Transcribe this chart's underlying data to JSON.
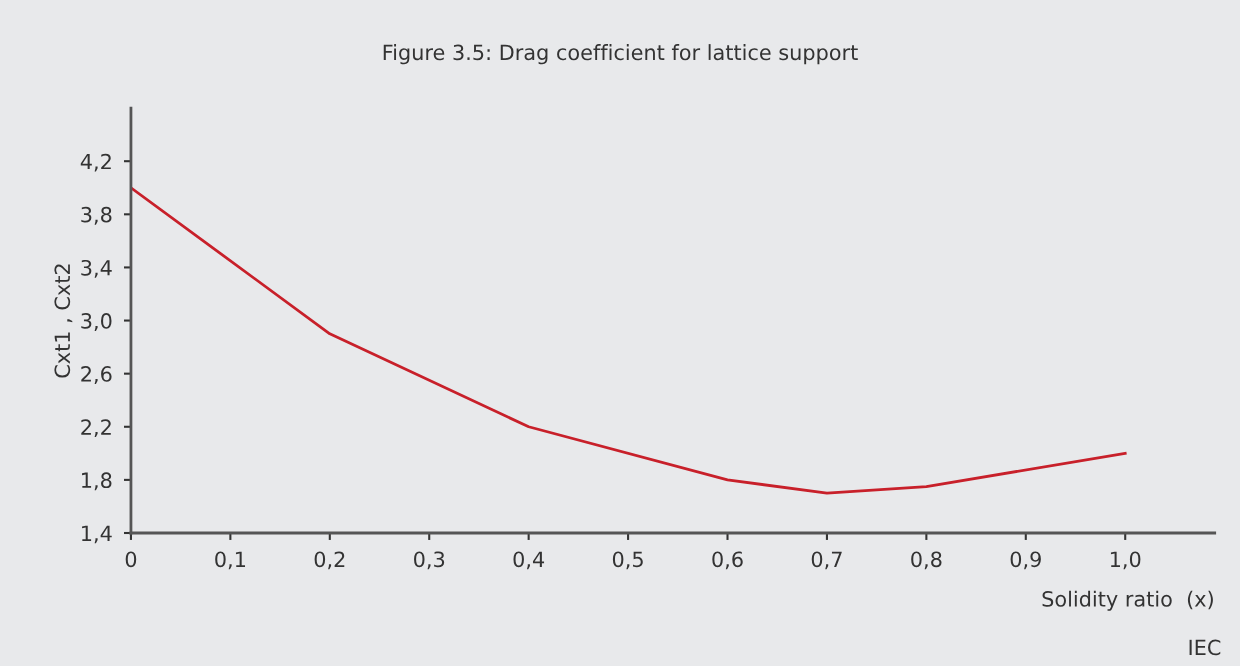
{
  "chart_data": {
    "type": "line",
    "title": "Figure 3.5: Drag coefficient for lattice support",
    "xlabel": "Solidity ratio  (x)",
    "ylabel": "Cxt1 , Cxt2",
    "x": [
      0,
      0.2,
      0.4,
      0.6,
      0.7,
      0.8,
      1.0
    ],
    "series": [
      {
        "color": "#c8202a",
        "values": [
          4.0,
          2.9,
          2.2,
          1.8,
          1.7,
          1.75,
          2.0
        ]
      }
    ],
    "xlim": [
      0,
      1.09
    ],
    "ylim": [
      1.4,
      4.6
    ],
    "xticks": [
      0,
      {
        "value": 0.1,
        "label": "0,1"
      },
      {
        "value": 0.2,
        "label": "0,2"
      },
      {
        "value": 0.3,
        "label": "0,3"
      },
      {
        "value": 0.4,
        "label": "0,4"
      },
      {
        "value": 0.5,
        "label": "0,5"
      },
      {
        "value": 0.6,
        "label": "0,6"
      },
      {
        "value": 0.7,
        "label": "0,7"
      },
      {
        "value": 0.8,
        "label": "0,8"
      },
      {
        "value": 0.9,
        "label": "0,9"
      },
      {
        "value": 1.0,
        "label": "1,0"
      }
    ],
    "yticks": [
      {
        "value": 1.4,
        "label": "1,4"
      },
      {
        "value": 1.8,
        "label": "1,8"
      },
      {
        "value": 2.2,
        "label": "2,2"
      },
      {
        "value": 2.6,
        "label": "2,6"
      },
      {
        "value": 3.0,
        "label": "3,0"
      },
      {
        "value": 3.4,
        "label": "3,4"
      },
      {
        "value": 3.8,
        "label": "3,8"
      },
      {
        "value": 4.2,
        "label": "4,2"
      }
    ],
    "grid": false,
    "legend": false,
    "marker": "none",
    "line_style": "solid",
    "annotations": [
      "IEC"
    ]
  }
}
